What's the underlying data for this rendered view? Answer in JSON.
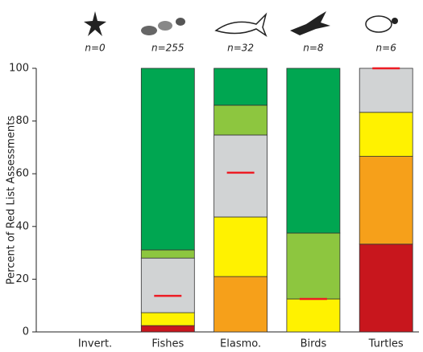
{
  "chart_data": {
    "type": "stacked_bar",
    "y_label": "Percent of Red List Assessments",
    "categories": [
      "Invert.",
      "Fishes",
      "Elasmo.",
      "Birds",
      "Turtles"
    ],
    "annotations": [
      "n=0",
      "n=255",
      "n=32",
      "n=8",
      "n=6"
    ],
    "series": [
      {
        "color": "#c8161d",
        "values": [
          0,
          2.4,
          0,
          0,
          33.3
        ]
      },
      {
        "color": "#f6a01a",
        "values": [
          0,
          0,
          21,
          0,
          33.3
        ]
      },
      {
        "color": "#fff200",
        "values": [
          0,
          4.9,
          22.6,
          12.5,
          16.7
        ]
      },
      {
        "color": "#d1d3d4",
        "values": [
          0,
          20.7,
          31.1,
          0,
          16.7
        ]
      },
      {
        "color": "#8dc63f",
        "values": [
          0,
          3.1,
          11.3,
          25,
          0
        ]
      },
      {
        "color": "#00a651",
        "values": [
          0,
          68.9,
          14,
          62.5,
          0
        ]
      }
    ],
    "markers": [
      null,
      13.7,
      60.4,
      12.5,
      100
    ],
    "marker_color": "#ed1c24",
    "ylim": [
      0,
      100
    ],
    "yticks": [
      0,
      20,
      40,
      60,
      80,
      100
    ]
  }
}
